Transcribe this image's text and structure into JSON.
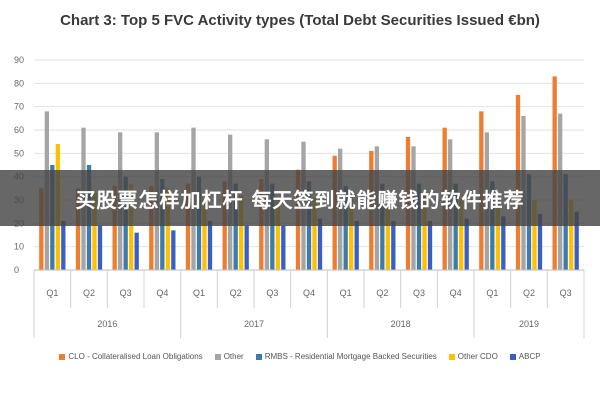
{
  "banner": {
    "text": "买股票怎样加杠杆 每天签到就能赚钱的软件推荐"
  },
  "chart_data": {
    "type": "bar",
    "title": "Chart 3: Top 5 FVC Activity types (Total Debt Securities Issued €bn)",
    "xlabel": "",
    "ylabel": "",
    "ylim": [
      0,
      90
    ],
    "yticks": [
      "0",
      "10",
      "20",
      "30",
      "40",
      "50",
      "60",
      "70",
      "80",
      "90"
    ],
    "grid": true,
    "legend_position": "bottom",
    "categories": [
      "Q1",
      "Q2",
      "Q3",
      "Q4",
      "Q1",
      "Q2",
      "Q3",
      "Q4",
      "Q1",
      "Q2",
      "Q3",
      "Q4",
      "Q1",
      "Q2",
      "Q3"
    ],
    "groups": [
      {
        "label": "2016",
        "count": 4
      },
      {
        "label": "2017",
        "count": 4
      },
      {
        "label": "2018",
        "count": 4
      },
      {
        "label": "2019",
        "count": 3
      }
    ],
    "series": [
      {
        "name": "CLO - Collateralised Loan Obligations",
        "color": "#ED7D31",
        "values": [
          35,
          35,
          36,
          36,
          37,
          38,
          39,
          43,
          49,
          51,
          57,
          61,
          68,
          75,
          83
        ]
      },
      {
        "name": "Other",
        "color": "#A5A5A5",
        "values": [
          68,
          61,
          59,
          59,
          61,
          58,
          56,
          55,
          52,
          53,
          53,
          56,
          59,
          66,
          67
        ]
      },
      {
        "name": "RMBS - Residential Mortgage Backed Securities",
        "color": "#3E7BA8",
        "values": [
          45,
          45,
          40,
          39,
          40,
          37,
          37,
          38,
          36,
          37,
          37,
          37,
          38,
          41,
          41
        ]
      },
      {
        "name": "Other CDO",
        "color": "#FFC000",
        "values": [
          54,
          33,
          37,
          35,
          31,
          32,
          31,
          31,
          31,
          31,
          32,
          31,
          30,
          30,
          30
        ]
      },
      {
        "name": "ABCP",
        "color": "#3B5FC0",
        "values": [
          21,
          19,
          16,
          17,
          21,
          19,
          19,
          22,
          21,
          21,
          21,
          22,
          23,
          24,
          25
        ]
      }
    ]
  }
}
